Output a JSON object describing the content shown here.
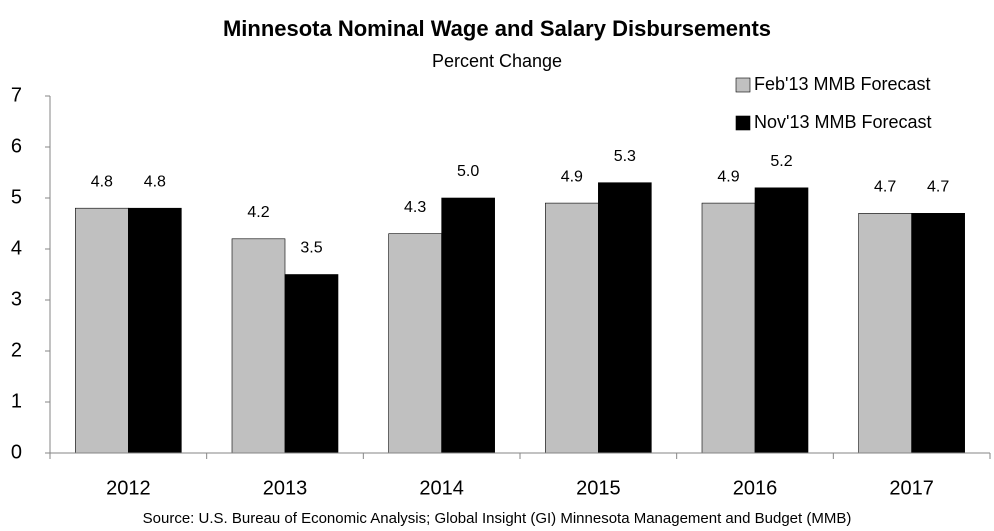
{
  "chart_data": {
    "type": "bar",
    "title": "Minnesota Nominal Wage and Salary Disbursements",
    "subtitle": "Percent Change",
    "source": "Source: U.S. Bureau of Economic Analysis; Global Insight (GI) Minnesota Management and Budget (MMB)",
    "categories": [
      "2012",
      "2013",
      "2014",
      "2015",
      "2016",
      "2017"
    ],
    "series": [
      {
        "name": "Feb'13 MMB Forecast",
        "color": "#c0c0c0",
        "values": [
          4.8,
          4.2,
          4.3,
          4.9,
          4.9,
          4.7
        ],
        "value_labels": [
          "4.8",
          "4.2",
          "4.3",
          "4.9",
          "4.9",
          "4.7"
        ]
      },
      {
        "name": "Nov'13 MMB Forecast",
        "color": "#000000",
        "values": [
          4.8,
          3.5,
          5.0,
          5.3,
          5.2,
          4.7
        ],
        "value_labels": [
          "4.8",
          "3.5",
          "5.0",
          "5.3",
          "5.2",
          "4.7"
        ]
      }
    ],
    "ylim": [
      0,
      7
    ],
    "yticks": [
      0,
      1,
      2,
      3,
      4,
      5,
      6,
      7
    ],
    "grid": false,
    "legend": "top-right"
  }
}
